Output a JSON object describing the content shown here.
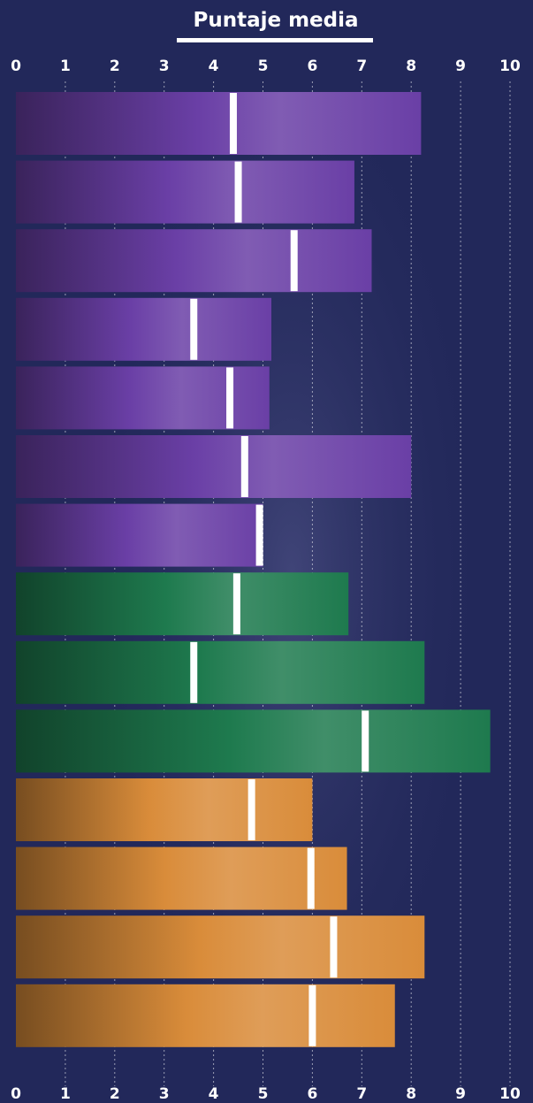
{
  "chart_data": {
    "type": "bar",
    "orientation": "horizontal",
    "title": "Puntaje media",
    "xlim": [
      0,
      10
    ],
    "x_ticks": [
      "0",
      "1",
      "2",
      "3",
      "4",
      "5",
      "6",
      "7",
      "8",
      "9",
      "10"
    ],
    "grid": "vertical dotted",
    "series": [
      {
        "values": [
          8.2,
          6.85,
          7.2,
          5.17,
          5.13,
          8.0,
          5.0,
          6.73,
          8.27,
          9.6,
          6.0,
          6.7,
          8.27,
          7.67
        ]
      },
      {
        "values": [
          4.4,
          4.5,
          5.63,
          3.6,
          4.33,
          4.63,
          4.93,
          4.47,
          3.6,
          7.07,
          4.77,
          5.97,
          6.43,
          6.0
        ]
      }
    ],
    "group_colors": [
      "#6a3fa6",
      "#6a3fa6",
      "#6a3fa6",
      "#6a3fa6",
      "#6a3fa6",
      "#6a3fa6",
      "#6a3fa6",
      "#1e7a4e",
      "#1e7a4e",
      "#1e7a4e",
      "#d98c3a",
      "#d98c3a",
      "#d98c3a",
      "#d98c3a"
    ],
    "marker_color": "#ffffff",
    "background": "#22285a"
  }
}
